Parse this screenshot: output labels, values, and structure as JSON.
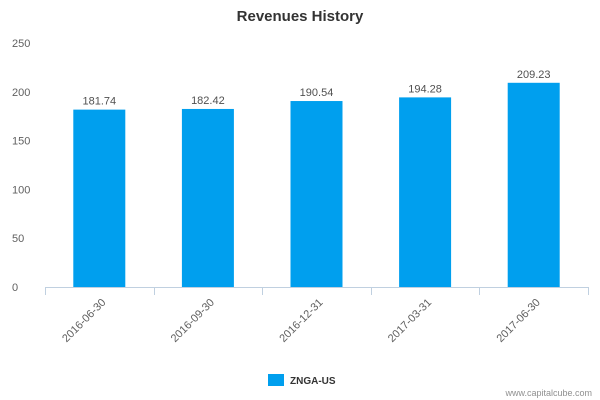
{
  "chart_data": {
    "type": "bar",
    "title": "Revenues History",
    "categories": [
      "2016-06-30",
      "2016-09-30",
      "2016-12-31",
      "2017-03-31",
      "2017-06-30"
    ],
    "series": [
      {
        "name": "ZNGA-US",
        "values": [
          181.74,
          182.42,
          190.54,
          194.28,
          209.23
        ],
        "data_labels": [
          "181.74",
          "182.42",
          "190.54",
          "194.28",
          "209.23"
        ],
        "color": "#009fee"
      }
    ],
    "xlabel": "",
    "ylabel": "",
    "ylim": [
      0,
      250
    ],
    "yticks": [
      0,
      50,
      100,
      150,
      200,
      250
    ],
    "grid": false,
    "legend": "bottom-center"
  },
  "credit": "www.capitalcube.com"
}
